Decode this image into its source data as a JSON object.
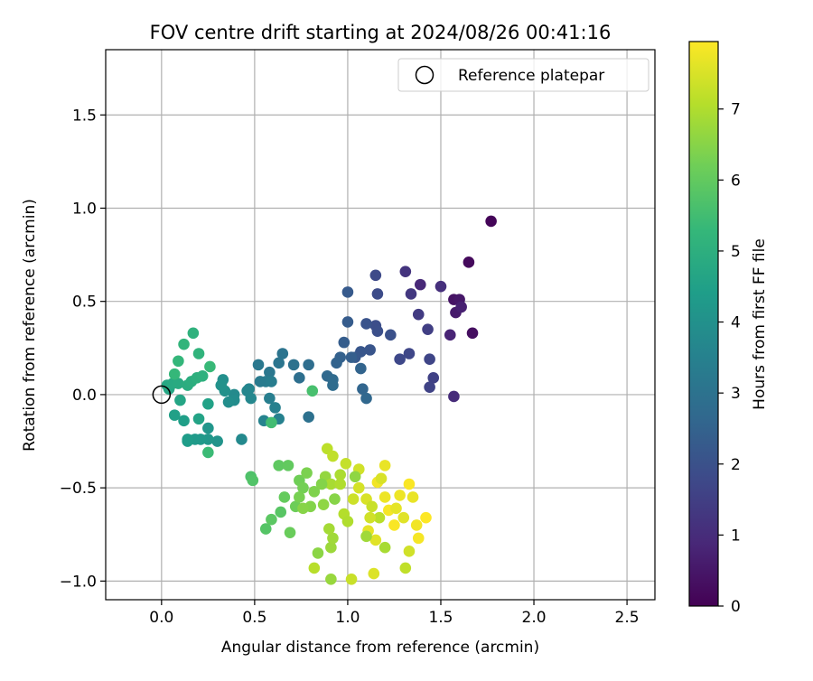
{
  "chart_data": {
    "type": "scatter",
    "title": "FOV centre drift starting at 2024/08/26 00:41:16",
    "xlabel": "Angular distance from reference (arcmin)",
    "ylabel": "Rotation from reference (arcmin)",
    "xlim": [
      -0.3,
      2.65
    ],
    "ylim": [
      -1.1,
      1.85
    ],
    "xticks": [
      0.0,
      0.5,
      1.0,
      1.5,
      2.0,
      2.5
    ],
    "xtick_labels": [
      "0.0",
      "0.5",
      "1.0",
      "1.5",
      "2.0",
      "2.5"
    ],
    "yticks": [
      -1.0,
      -0.5,
      0.0,
      0.5,
      1.0,
      1.5
    ],
    "ytick_labels": [
      "−1.0",
      "−0.5",
      "0.0",
      "0.5",
      "1.0",
      "1.5"
    ],
    "grid": true,
    "legend": {
      "position": "top-right",
      "label": "Reference platepar"
    },
    "reference_point": {
      "x": 0.0,
      "y": 0.0
    },
    "colorbar": {
      "label": "Hours from first FF file",
      "colormap": "viridis",
      "range": [
        0,
        7.95
      ],
      "ticks": [
        0,
        1,
        2,
        3,
        4,
        5,
        6,
        7
      ],
      "tick_labels": [
        "0",
        "1",
        "2",
        "3",
        "4",
        "5",
        "6",
        "7"
      ]
    },
    "colormap_stops": [
      "#440154",
      "#482878",
      "#3e4989",
      "#31688e",
      "#26828e",
      "#1f9e89",
      "#35b779",
      "#6ece58",
      "#b5de2b",
      "#fde725"
    ],
    "points": [
      [
        1.77,
        0.93,
        0.1
      ],
      [
        1.65,
        0.71,
        0.2
      ],
      [
        1.67,
        0.33,
        0.3
      ],
      [
        1.57,
        0.51,
        0.4
      ],
      [
        1.6,
        0.51,
        0.5
      ],
      [
        1.58,
        0.44,
        0.6
      ],
      [
        1.61,
        0.47,
        0.7
      ],
      [
        1.55,
        0.32,
        0.8
      ],
      [
        1.39,
        0.59,
        0.9
      ],
      [
        1.57,
        -0.01,
        1.0
      ],
      [
        1.5,
        0.58,
        1.1
      ],
      [
        1.31,
        0.66,
        1.2
      ],
      [
        1.34,
        0.54,
        1.3
      ],
      [
        1.38,
        0.43,
        1.4
      ],
      [
        1.43,
        0.35,
        1.5
      ],
      [
        1.46,
        0.09,
        1.55
      ],
      [
        1.44,
        0.04,
        1.6
      ],
      [
        1.44,
        0.19,
        1.65
      ],
      [
        1.33,
        0.22,
        1.7
      ],
      [
        1.28,
        0.19,
        1.75
      ],
      [
        1.15,
        0.64,
        1.8
      ],
      [
        1.16,
        0.54,
        1.85
      ],
      [
        1.15,
        0.37,
        1.9
      ],
      [
        1.16,
        0.34,
        1.95
      ],
      [
        1.23,
        0.32,
        2.0
      ],
      [
        1.1,
        0.38,
        2.05
      ],
      [
        1.12,
        0.24,
        2.1
      ],
      [
        1.07,
        0.23,
        2.15
      ],
      [
        1.04,
        0.2,
        2.2
      ],
      [
        1.0,
        0.55,
        2.25
      ],
      [
        1.0,
        0.39,
        2.3
      ],
      [
        0.98,
        0.28,
        2.35
      ],
      [
        1.02,
        0.2,
        2.4
      ],
      [
        0.96,
        0.2,
        2.45
      ],
      [
        0.94,
        0.17,
        2.5
      ],
      [
        1.07,
        0.14,
        2.55
      ],
      [
        1.08,
        0.03,
        2.6
      ],
      [
        1.1,
        -0.02,
        2.65
      ],
      [
        0.89,
        0.1,
        2.7
      ],
      [
        0.92,
        0.08,
        2.75
      ],
      [
        0.92,
        0.05,
        2.8
      ],
      [
        0.79,
        0.16,
        2.85
      ],
      [
        0.74,
        0.09,
        2.9
      ],
      [
        0.79,
        -0.12,
        2.95
      ],
      [
        0.71,
        0.16,
        3.0
      ],
      [
        0.65,
        0.22,
        3.05
      ],
      [
        0.63,
        0.17,
        3.1
      ],
      [
        0.58,
        0.12,
        3.15
      ],
      [
        0.52,
        0.16,
        3.2
      ],
      [
        0.53,
        0.07,
        3.25
      ],
      [
        0.56,
        0.07,
        3.3
      ],
      [
        0.59,
        0.07,
        3.35
      ],
      [
        0.58,
        -0.02,
        3.4
      ],
      [
        0.61,
        -0.07,
        3.45
      ],
      [
        0.63,
        -0.13,
        3.5
      ],
      [
        0.55,
        -0.14,
        3.55
      ],
      [
        0.47,
        0.03,
        3.6
      ],
      [
        0.46,
        0.02,
        3.65
      ],
      [
        0.48,
        -0.02,
        3.7
      ],
      [
        0.43,
        -0.24,
        3.75
      ],
      [
        0.39,
        0.0,
        3.8
      ],
      [
        0.39,
        -0.03,
        3.85
      ],
      [
        0.36,
        -0.04,
        3.9
      ],
      [
        0.33,
        0.08,
        3.95
      ],
      [
        0.34,
        0.02,
        4.0
      ],
      [
        0.32,
        0.05,
        4.05
      ],
      [
        0.3,
        -0.25,
        4.1
      ],
      [
        0.25,
        -0.18,
        4.15
      ],
      [
        0.25,
        -0.24,
        4.2
      ],
      [
        0.21,
        -0.24,
        4.25
      ],
      [
        0.18,
        -0.24,
        4.3
      ],
      [
        0.14,
        -0.24,
        4.35
      ],
      [
        0.14,
        -0.25,
        4.4
      ],
      [
        0.12,
        -0.14,
        4.45
      ],
      [
        0.07,
        -0.11,
        4.5
      ],
      [
        0.25,
        -0.05,
        4.55
      ],
      [
        0.2,
        -0.13,
        4.6
      ],
      [
        0.1,
        -0.03,
        4.65
      ],
      [
        0.04,
        0.03,
        4.7
      ],
      [
        0.03,
        0.05,
        4.75
      ],
      [
        0.06,
        0.06,
        4.8
      ],
      [
        0.09,
        0.06,
        4.85
      ],
      [
        0.14,
        0.05,
        4.9
      ],
      [
        0.16,
        0.07,
        4.95
      ],
      [
        0.19,
        0.09,
        5.0
      ],
      [
        0.22,
        0.1,
        5.05
      ],
      [
        0.17,
        0.33,
        5.1
      ],
      [
        0.2,
        0.22,
        5.15
      ],
      [
        0.12,
        0.27,
        5.2
      ],
      [
        0.09,
        0.18,
        5.25
      ],
      [
        0.07,
        0.11,
        5.3
      ],
      [
        0.26,
        0.15,
        5.35
      ],
      [
        0.25,
        -0.31,
        5.4
      ],
      [
        0.59,
        -0.15,
        5.5
      ],
      [
        0.81,
        0.02,
        5.6
      ],
      [
        0.48,
        -0.44,
        5.7
      ],
      [
        0.49,
        -0.46,
        5.75
      ],
      [
        0.56,
        -0.72,
        5.8
      ],
      [
        0.64,
        -0.63,
        5.85
      ],
      [
        0.59,
        -0.67,
        5.9
      ],
      [
        0.63,
        -0.38,
        5.95
      ],
      [
        0.68,
        -0.38,
        6.0
      ],
      [
        0.66,
        -0.55,
        6.05
      ],
      [
        0.69,
        -0.74,
        6.1
      ],
      [
        0.72,
        -0.6,
        6.15
      ],
      [
        0.74,
        -0.46,
        6.2
      ],
      [
        0.76,
        -0.5,
        6.25
      ],
      [
        0.74,
        -0.55,
        6.3
      ],
      [
        0.78,
        -0.42,
        6.35
      ],
      [
        0.82,
        -0.52,
        6.4
      ],
      [
        0.8,
        -0.6,
        6.45
      ],
      [
        0.76,
        -0.61,
        6.5
      ],
      [
        0.84,
        -0.85,
        6.55
      ],
      [
        0.87,
        -0.59,
        6.6
      ],
      [
        0.88,
        -0.44,
        6.65
      ],
      [
        0.91,
        -0.99,
        6.7
      ],
      [
        0.91,
        -0.82,
        6.75
      ],
      [
        0.92,
        -0.77,
        6.8
      ],
      [
        0.9,
        -0.72,
        6.85
      ],
      [
        0.91,
        -0.48,
        6.9
      ],
      [
        0.96,
        -0.43,
        6.95
      ],
      [
        0.96,
        -0.48,
        7.0
      ],
      [
        0.98,
        -0.64,
        7.05
      ],
      [
        0.82,
        -0.93,
        7.1
      ],
      [
        0.89,
        -0.29,
        7.15
      ],
      [
        0.92,
        -0.33,
        7.2
      ],
      [
        0.99,
        -0.37,
        7.25
      ],
      [
        1.02,
        -0.99,
        7.3
      ],
      [
        1.03,
        -0.56,
        7.35
      ],
      [
        1.06,
        -0.4,
        7.4
      ],
      [
        1.06,
        -0.5,
        7.45
      ],
      [
        1.1,
        -0.56,
        7.5
      ],
      [
        1.14,
        -0.96,
        7.55
      ],
      [
        1.15,
        -0.78,
        7.6
      ],
      [
        1.11,
        -0.73,
        7.65
      ],
      [
        1.2,
        -0.38,
        7.7
      ],
      [
        1.2,
        -0.55,
        7.75
      ],
      [
        1.16,
        -0.47,
        7.8
      ],
      [
        1.22,
        -0.62,
        7.85
      ],
      [
        1.25,
        -0.7,
        7.9
      ],
      [
        1.31,
        -0.93,
        7.2
      ],
      [
        1.33,
        -0.84,
        7.4
      ],
      [
        1.3,
        -0.66,
        7.6
      ],
      [
        1.35,
        -0.55,
        7.7
      ],
      [
        1.37,
        -0.7,
        7.8
      ],
      [
        1.38,
        -0.77,
        7.85
      ],
      [
        1.42,
        -0.66,
        7.95
      ],
      [
        1.33,
        -0.48,
        7.9
      ],
      [
        1.28,
        -0.54,
        7.75
      ],
      [
        1.26,
        -0.61,
        7.65
      ],
      [
        1.18,
        -0.45,
        7.5
      ],
      [
        1.13,
        -0.6,
        7.3
      ],
      [
        1.17,
        -0.66,
        7.1
      ],
      [
        1.2,
        -0.82,
        6.9
      ],
      [
        1.1,
        -0.76,
        6.8
      ],
      [
        1.04,
        -0.44,
        6.6
      ],
      [
        1.12,
        -0.66,
        7.4
      ],
      [
        1.0,
        -0.68,
        7.0
      ],
      [
        0.93,
        -0.56,
        6.5
      ],
      [
        0.86,
        -0.48,
        6.45
      ]
    ]
  }
}
